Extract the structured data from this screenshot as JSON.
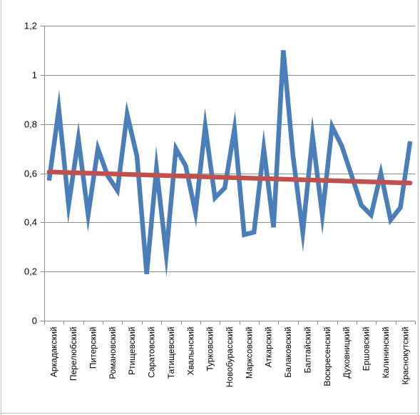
{
  "chart_data": {
    "type": "line",
    "title": "",
    "xlabel": "",
    "ylabel": "",
    "ylim": [
      0,
      1.2
    ],
    "y_ticks": [
      0,
      0.2,
      0.4,
      0.6,
      0.8,
      1,
      1.2
    ],
    "y_tick_labels": [
      "0",
      "0,2",
      "0,4",
      "0,6",
      "0,8",
      "1",
      "1,2"
    ],
    "grid": "horizontal",
    "legend": "none",
    "x_labels": [
      "Аркадакский",
      "Перелюбский",
      "Питерский",
      "Романовский",
      "Ртищевский",
      "Саратовский",
      "Татищевский",
      "Хвалынский",
      "Турковский",
      "Новобурасский",
      "Марксовский",
      "Аткарский",
      "Балаковский",
      "Балтайский",
      "Воскресенский",
      "Духовницкий",
      "Ершовский",
      "Калининский",
      "Краснокутский"
    ],
    "series": [
      {
        "color": "#4a7ebb",
        "values": [
          0.57,
          0.86,
          0.47,
          0.74,
          0.43,
          0.7,
          0.59,
          0.53,
          0.84,
          0.67,
          0.19,
          0.62,
          0.27,
          0.7,
          0.63,
          0.44,
          0.79,
          0.5,
          0.54,
          0.78,
          0.35,
          0.36,
          0.7,
          0.38,
          1.1,
          0.67,
          0.36,
          0.75,
          0.43,
          0.79,
          0.71,
          0.59,
          0.47,
          0.43,
          0.6,
          0.41,
          0.46,
          0.73
        ]
      },
      {
        "color": "#c0504d",
        "type": "trendline",
        "values": [
          0.605,
          0.56
        ]
      }
    ]
  }
}
